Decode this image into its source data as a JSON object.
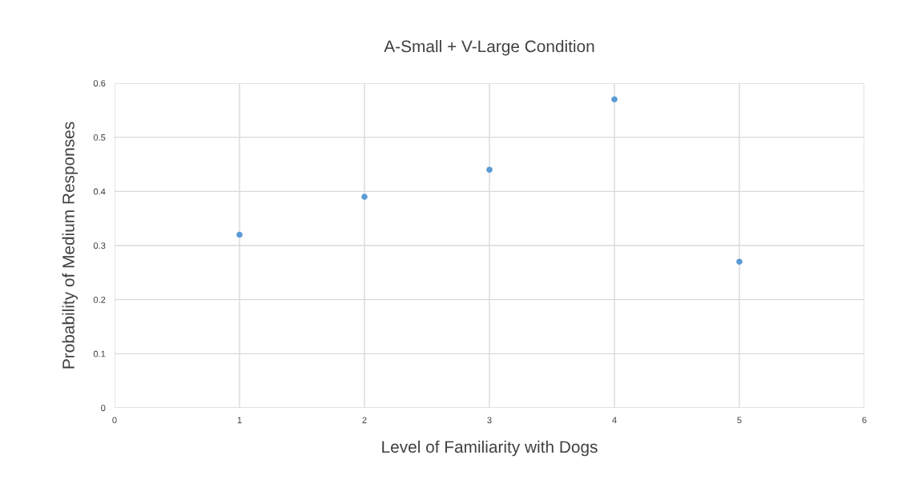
{
  "chart_data": {
    "type": "scatter",
    "title": "A-Small + V-Large Condition",
    "xlabel": "Level of Familiarity with Dogs",
    "ylabel": "Probability of Medium Responses",
    "x": [
      1,
      2,
      3,
      4,
      5
    ],
    "series": [
      {
        "color": "#5b9bd5",
        "values": [
          0.32,
          0.39,
          0.44,
          0.57,
          0.27
        ]
      }
    ],
    "xlim": [
      0,
      6
    ],
    "xticks": [
      0,
      1,
      2,
      3,
      4,
      5,
      6
    ],
    "ylim": [
      0,
      0.6
    ],
    "yticks": [
      0,
      0.1,
      0.2,
      0.3,
      0.4,
      0.5,
      0.6
    ],
    "grid": true,
    "marker": "circle"
  }
}
